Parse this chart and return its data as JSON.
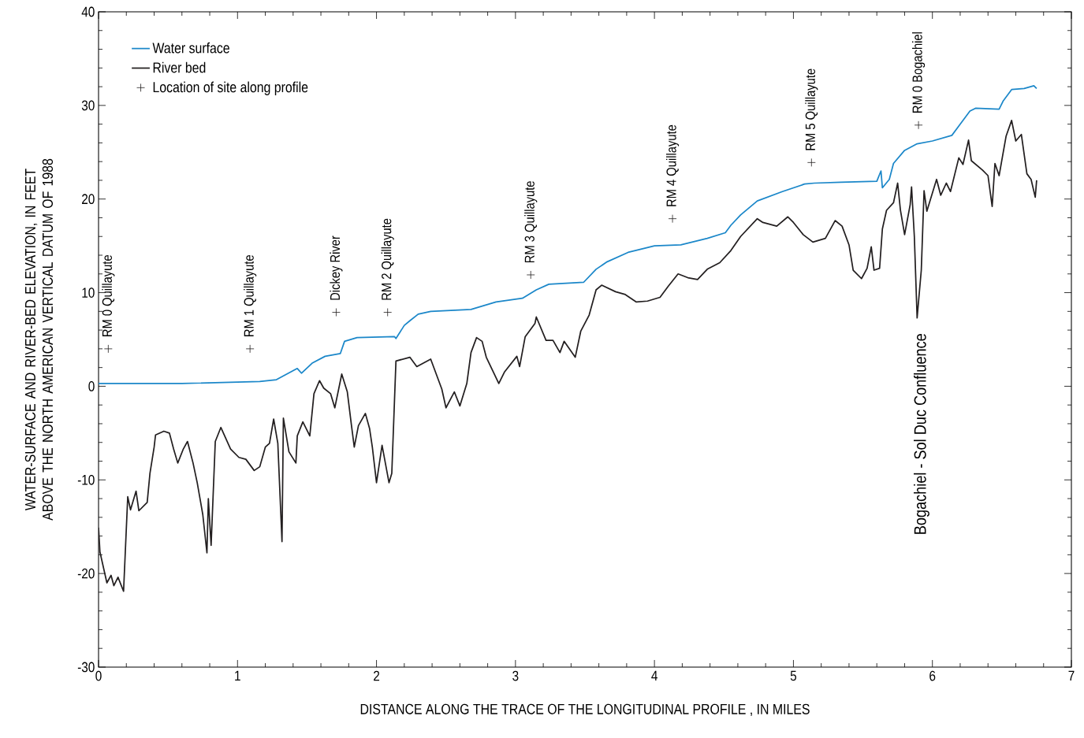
{
  "chart_data": {
    "type": "line",
    "xlabel": "DISTANCE ALONG THE TRACE OF THE LONGITUDINAL PROFILE , IN MILES",
    "ylabel": "WATER-SURFACE AND RIVER-BED ELEVATION, IN FEET ABOVE THE NORTH AMERICAN VERTICAL DATUM OF 1988",
    "xlim": [
      0,
      7
    ],
    "ylim": [
      -30,
      40
    ],
    "xticks": [
      0,
      1,
      2,
      3,
      4,
      5,
      6,
      7
    ],
    "yticks": [
      -30,
      -20,
      -10,
      0,
      10,
      20,
      30,
      40
    ],
    "grid": false,
    "legend": "top left",
    "marker": "none",
    "line_style": "solid",
    "series": [
      {
        "name": "Water surface",
        "color": "#1b87c9",
        "x": [
          0.0,
          0.6,
          1.16,
          1.28,
          1.43,
          1.46,
          1.54,
          1.63,
          1.74,
          1.77,
          1.86,
          2.13,
          2.14,
          2.2,
          2.24,
          2.3,
          2.39,
          2.68,
          2.86,
          3.05,
          3.15,
          3.24,
          3.49,
          3.58,
          3.66,
          3.81,
          4.0,
          4.19,
          4.38,
          4.51,
          4.55,
          4.62,
          4.74,
          4.92,
          5.08,
          5.15,
          5.34,
          5.6,
          5.63,
          5.64,
          5.69,
          5.72,
          5.8,
          5.89,
          6.0,
          6.14,
          6.19,
          6.27,
          6.31,
          6.48,
          6.51,
          6.57,
          6.66,
          6.73,
          6.75
        ],
        "values": [
          0.3,
          0.3,
          0.5,
          0.7,
          1.9,
          1.4,
          2.5,
          3.2,
          3.5,
          4.8,
          5.2,
          5.3,
          5.1,
          6.5,
          7.0,
          7.7,
          8.0,
          8.2,
          9.0,
          9.4,
          10.3,
          10.9,
          11.1,
          12.5,
          13.3,
          14.3,
          15.0,
          15.1,
          15.8,
          16.4,
          17.2,
          18.3,
          19.8,
          20.8,
          21.6,
          21.7,
          21.8,
          21.9,
          23.0,
          21.2,
          22.1,
          23.8,
          25.2,
          25.9,
          26.2,
          26.8,
          27.8,
          29.4,
          29.7,
          29.6,
          30.5,
          31.7,
          31.8,
          32.1,
          31.8
        ]
      },
      {
        "name": "River bed",
        "color": "#231f20",
        "x": [
          0.0,
          0.01,
          0.06,
          0.09,
          0.11,
          0.14,
          0.18,
          0.21,
          0.23,
          0.27,
          0.29,
          0.35,
          0.37,
          0.4,
          0.41,
          0.47,
          0.51,
          0.54,
          0.57,
          0.61,
          0.64,
          0.68,
          0.71,
          0.75,
          0.78,
          0.79,
          0.81,
          0.84,
          0.88,
          0.95,
          1.01,
          1.06,
          1.12,
          1.16,
          1.2,
          1.23,
          1.26,
          1.29,
          1.32,
          1.33,
          1.37,
          1.42,
          1.43,
          1.47,
          1.52,
          1.55,
          1.59,
          1.62,
          1.67,
          1.7,
          1.75,
          1.79,
          1.82,
          1.84,
          1.87,
          1.92,
          1.95,
          1.97,
          2.0,
          2.04,
          2.09,
          2.11,
          2.14,
          2.24,
          2.29,
          2.39,
          2.47,
          2.5,
          2.56,
          2.6,
          2.65,
          2.68,
          2.72,
          2.76,
          2.79,
          2.88,
          2.92,
          3.01,
          3.03,
          3.07,
          3.14,
          3.15,
          3.22,
          3.27,
          3.32,
          3.35,
          3.43,
          3.47,
          3.53,
          3.58,
          3.62,
          3.72,
          3.79,
          3.87,
          3.95,
          4.04,
          4.1,
          4.17,
          4.24,
          4.31,
          4.38,
          4.47,
          4.55,
          4.62,
          4.74,
          4.78,
          4.88,
          4.96,
          5.0,
          5.07,
          5.14,
          5.23,
          5.3,
          5.35,
          5.4,
          5.43,
          5.49,
          5.53,
          5.56,
          5.58,
          5.62,
          5.64,
          5.67,
          5.72,
          5.75,
          5.77,
          5.8,
          5.84,
          5.85,
          5.87,
          5.89,
          5.92,
          5.94,
          5.96,
          6.03,
          6.06,
          6.1,
          6.13,
          6.19,
          6.22,
          6.26,
          6.28,
          6.36,
          6.4,
          6.43,
          6.45,
          6.48,
          6.53,
          6.57,
          6.6,
          6.64,
          6.68,
          6.71,
          6.74,
          6.75
        ],
        "values": [
          -15.1,
          -17.7,
          -21.0,
          -20.2,
          -21.3,
          -20.4,
          -21.9,
          -11.8,
          -13.2,
          -11.2,
          -13.3,
          -12.4,
          -9.3,
          -6.5,
          -5.2,
          -4.8,
          -5.0,
          -6.7,
          -8.2,
          -6.7,
          -5.9,
          -8.2,
          -10.3,
          -13.7,
          -17.8,
          -12.0,
          -17.0,
          -5.9,
          -4.4,
          -6.7,
          -7.6,
          -7.8,
          -9.0,
          -8.6,
          -6.5,
          -6.1,
          -3.5,
          -6.1,
          -16.6,
          -3.4,
          -7.0,
          -8.2,
          -5.3,
          -3.8,
          -5.3,
          -0.8,
          0.6,
          -0.2,
          -0.8,
          -2.3,
          1.3,
          -0.6,
          -4.2,
          -6.5,
          -4.2,
          -2.9,
          -4.5,
          -6.5,
          -10.3,
          -6.3,
          -10.3,
          -9.3,
          2.7,
          3.1,
          2.1,
          2.9,
          -0.3,
          -2.3,
          -0.6,
          -2.1,
          0.3,
          3.6,
          5.2,
          4.8,
          3.1,
          0.3,
          1.5,
          3.2,
          2.1,
          5.3,
          6.7,
          7.4,
          4.9,
          4.9,
          3.6,
          4.8,
          3.1,
          5.9,
          7.6,
          10.3,
          10.8,
          10.1,
          9.8,
          9.0,
          9.1,
          9.5,
          10.7,
          12.0,
          11.6,
          11.4,
          12.5,
          13.2,
          14.5,
          16.0,
          17.9,
          17.5,
          17.1,
          18.1,
          17.5,
          16.2,
          15.4,
          15.8,
          17.7,
          17.1,
          15.1,
          12.4,
          11.5,
          12.6,
          14.9,
          12.4,
          12.6,
          16.8,
          18.8,
          19.6,
          21.7,
          18.8,
          16.2,
          19.4,
          21.3,
          16.0,
          7.3,
          12.4,
          20.9,
          18.7,
          22.1,
          20.4,
          21.7,
          20.8,
          24.4,
          23.7,
          26.3,
          24.1,
          23.1,
          22.5,
          19.2,
          23.8,
          22.5,
          26.7,
          28.4,
          26.2,
          26.9,
          22.7,
          22.1,
          20.2,
          22.0
        ]
      },
      {
        "name": "Location of site along profile",
        "type": "scatter",
        "marker": "cross",
        "color": "#231f20",
        "x": [
          0.07,
          1.09,
          1.71,
          2.08,
          3.11,
          4.13,
          5.13,
          5.9
        ],
        "values": [
          4.0,
          4.0,
          7.9,
          7.9,
          11.9,
          17.9,
          23.9,
          27.9
        ]
      }
    ],
    "annotations": [
      {
        "text": "RM 0 Quillayute",
        "x": 0.07,
        "y": 4.0
      },
      {
        "text": "RM 1 Quillayute",
        "x": 1.09,
        "y": 4.0
      },
      {
        "text": "Dickey River",
        "x": 1.71,
        "y": 7.9
      },
      {
        "text": "RM 2 Quillayute",
        "x": 2.08,
        "y": 7.9
      },
      {
        "text": "RM 3 Quillayute",
        "x": 3.11,
        "y": 11.9
      },
      {
        "text": "RM 4 Quillayute",
        "x": 4.13,
        "y": 17.9
      },
      {
        "text": "RM 5 Quillayute",
        "x": 5.13,
        "y": 23.9
      },
      {
        "text": "RM 0  Bogachiel",
        "x": 5.9,
        "y": 27.9
      },
      "Bogachiel - Sol Duc Confluence"
    ]
  }
}
